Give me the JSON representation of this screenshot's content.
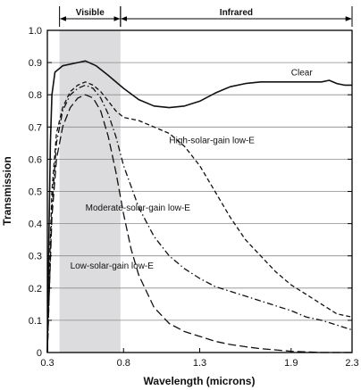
{
  "chart_data": {
    "type": "line",
    "xlabel": "Wavelength (microns)",
    "ylabel": "Transmission",
    "xlim": [
      0.3,
      2.3
    ],
    "ylim": [
      0,
      1.0
    ],
    "xticks": [
      "0.3",
      "0.8",
      "1.3",
      "1.9",
      "2.3"
    ],
    "yticks": [
      "0",
      "0.1",
      "0.2",
      "0.3",
      "0.4",
      "0.5",
      "0.6",
      "0.7",
      "0.8",
      "0.9",
      "1.0"
    ],
    "grid": "horizontal",
    "bands": [
      {
        "label": "Visible",
        "x0": 0.38,
        "x1": 0.78,
        "shaded": true
      },
      {
        "label": "Infrared",
        "x0": 0.78,
        "x1": 2.3,
        "shaded": false
      }
    ],
    "series": [
      {
        "name": "Clear",
        "style": "solid",
        "label_pos": {
          "x": 1.9,
          "y": 0.86
        },
        "points": [
          [
            0.3,
            0.0
          ],
          [
            0.31,
            0.35
          ],
          [
            0.32,
            0.65
          ],
          [
            0.33,
            0.8
          ],
          [
            0.35,
            0.87
          ],
          [
            0.4,
            0.89
          ],
          [
            0.5,
            0.9
          ],
          [
            0.55,
            0.905
          ],
          [
            0.62,
            0.89
          ],
          [
            0.7,
            0.86
          ],
          [
            0.8,
            0.82
          ],
          [
            0.9,
            0.785
          ],
          [
            1.0,
            0.765
          ],
          [
            1.1,
            0.76
          ],
          [
            1.2,
            0.765
          ],
          [
            1.3,
            0.78
          ],
          [
            1.4,
            0.805
          ],
          [
            1.5,
            0.825
          ],
          [
            1.6,
            0.835
          ],
          [
            1.7,
            0.84
          ],
          [
            1.8,
            0.84
          ],
          [
            1.9,
            0.84
          ],
          [
            2.0,
            0.84
          ],
          [
            2.1,
            0.84
          ],
          [
            2.15,
            0.845
          ],
          [
            2.2,
            0.835
          ],
          [
            2.25,
            0.83
          ],
          [
            2.3,
            0.83
          ]
        ]
      },
      {
        "name": "High-solar-gain low-E",
        "style": "short-dash",
        "label_pos": {
          "x": 1.1,
          "y": 0.65
        },
        "points": [
          [
            0.3,
            0.0
          ],
          [
            0.31,
            0.2
          ],
          [
            0.33,
            0.5
          ],
          [
            0.36,
            0.68
          ],
          [
            0.4,
            0.76
          ],
          [
            0.45,
            0.81
          ],
          [
            0.5,
            0.83
          ],
          [
            0.55,
            0.84
          ],
          [
            0.6,
            0.83
          ],
          [
            0.65,
            0.81
          ],
          [
            0.7,
            0.78
          ],
          [
            0.75,
            0.75
          ],
          [
            0.8,
            0.73
          ],
          [
            0.9,
            0.72
          ],
          [
            1.0,
            0.7
          ],
          [
            1.1,
            0.68
          ],
          [
            1.2,
            0.64
          ],
          [
            1.3,
            0.58
          ],
          [
            1.4,
            0.5
          ],
          [
            1.5,
            0.42
          ],
          [
            1.6,
            0.35
          ],
          [
            1.7,
            0.3
          ],
          [
            1.8,
            0.25
          ],
          [
            1.9,
            0.21
          ],
          [
            2.0,
            0.18
          ],
          [
            2.1,
            0.15
          ],
          [
            2.2,
            0.12
          ],
          [
            2.3,
            0.11
          ]
        ]
      },
      {
        "name": "Moderate-solar-gain low-E",
        "style": "dash-dot",
        "label_pos": {
          "x": 0.55,
          "y": 0.44
        },
        "points": [
          [
            0.3,
            0.0
          ],
          [
            0.31,
            0.15
          ],
          [
            0.33,
            0.45
          ],
          [
            0.36,
            0.65
          ],
          [
            0.4,
            0.75
          ],
          [
            0.45,
            0.8
          ],
          [
            0.5,
            0.82
          ],
          [
            0.55,
            0.83
          ],
          [
            0.6,
            0.82
          ],
          [
            0.65,
            0.79
          ],
          [
            0.7,
            0.74
          ],
          [
            0.75,
            0.67
          ],
          [
            0.8,
            0.58
          ],
          [
            0.9,
            0.45
          ],
          [
            1.0,
            0.36
          ],
          [
            1.1,
            0.3
          ],
          [
            1.2,
            0.26
          ],
          [
            1.3,
            0.23
          ],
          [
            1.4,
            0.205
          ],
          [
            1.5,
            0.19
          ],
          [
            1.6,
            0.175
          ],
          [
            1.7,
            0.16
          ],
          [
            1.8,
            0.145
          ],
          [
            1.9,
            0.13
          ],
          [
            2.0,
            0.11
          ],
          [
            2.1,
            0.1
          ],
          [
            2.2,
            0.085
          ],
          [
            2.3,
            0.07
          ]
        ]
      },
      {
        "name": "Low-solar-gain low-E",
        "style": "long-dash",
        "label_pos": {
          "x": 0.45,
          "y": 0.26
        },
        "points": [
          [
            0.3,
            0.0
          ],
          [
            0.31,
            0.15
          ],
          [
            0.33,
            0.42
          ],
          [
            0.36,
            0.6
          ],
          [
            0.4,
            0.7
          ],
          [
            0.45,
            0.76
          ],
          [
            0.5,
            0.79
          ],
          [
            0.55,
            0.8
          ],
          [
            0.6,
            0.79
          ],
          [
            0.65,
            0.75
          ],
          [
            0.7,
            0.67
          ],
          [
            0.75,
            0.56
          ],
          [
            0.8,
            0.43
          ],
          [
            0.85,
            0.32
          ],
          [
            0.9,
            0.24
          ],
          [
            1.0,
            0.14
          ],
          [
            1.1,
            0.09
          ],
          [
            1.2,
            0.065
          ],
          [
            1.3,
            0.05
          ],
          [
            1.4,
            0.035
          ],
          [
            1.5,
            0.025
          ],
          [
            1.6,
            0.018
          ],
          [
            1.7,
            0.012
          ],
          [
            1.8,
            0.008
          ],
          [
            1.9,
            0.004
          ],
          [
            2.0,
            0.002
          ],
          [
            2.1,
            0.0
          ],
          [
            2.2,
            0.0
          ],
          [
            2.3,
            0.0
          ]
        ]
      }
    ]
  }
}
